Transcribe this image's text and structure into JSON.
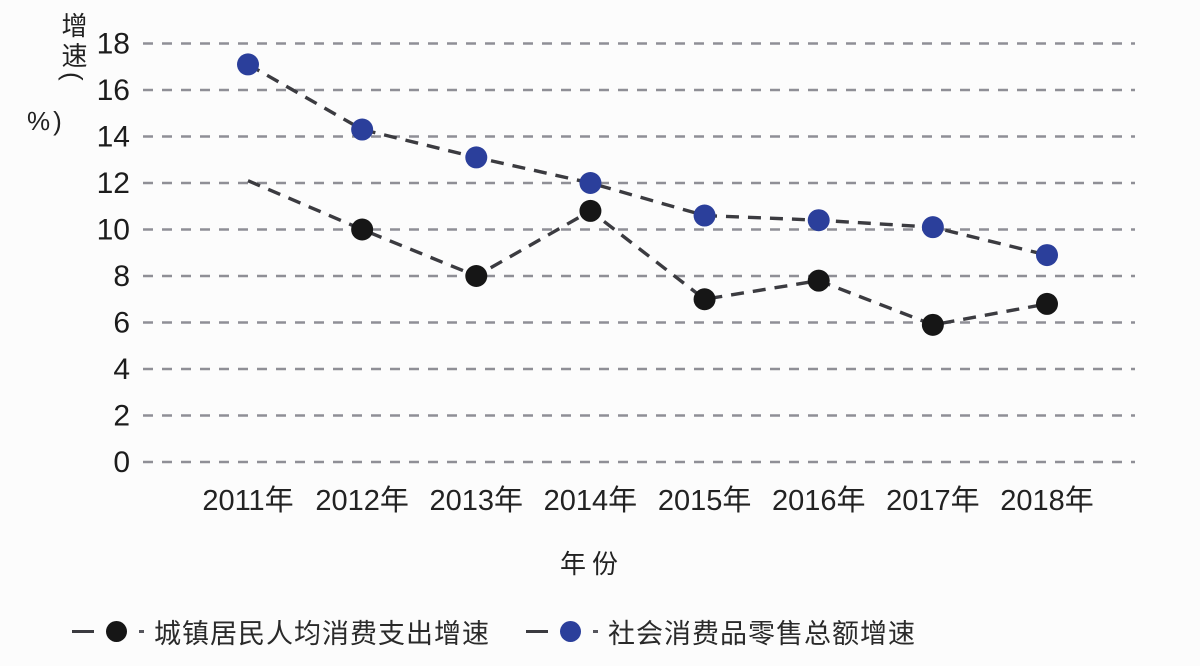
{
  "chart_data": {
    "type": "line",
    "title": "",
    "x": [
      "2011年",
      "2012年",
      "2013年",
      "2014年",
      "2015年",
      "2016年",
      "2017年",
      "2018年"
    ],
    "xlabel": "年份",
    "ylabel": "增速（%）",
    "ylabel_parts": {
      "vertical": "增速(",
      "suffix": "%)"
    },
    "yticks": [
      0,
      2,
      4,
      6,
      8,
      10,
      12,
      14,
      16,
      18
    ],
    "ylim": [
      0,
      18
    ],
    "grid": "horizontal dashed",
    "legend_position": "bottom",
    "colors": {
      "background": "#fcfcfc",
      "gridline": "#8f8f96",
      "line": "#3b3b40",
      "black_marker": "#161616",
      "blue_marker": "#2b3f9b",
      "tick_text": "#1c1c1c"
    },
    "series": [
      {
        "name": "城镇居民人均消费支出增速",
        "marker_color": "#161616",
        "line_style": "dashed",
        "values": [
          12.1,
          10.0,
          8.0,
          10.8,
          7.0,
          7.8,
          5.9,
          6.8
        ],
        "markers": [
          false,
          true,
          true,
          true,
          true,
          true,
          true,
          true
        ]
      },
      {
        "name": "社会消费品零售总额增速",
        "marker_color": "#2b3f9b",
        "line_style": "dashed",
        "values": [
          17.1,
          14.3,
          13.1,
          12.0,
          10.6,
          10.4,
          10.1,
          8.9
        ],
        "markers": [
          true,
          true,
          true,
          true,
          true,
          true,
          true,
          true
        ]
      }
    ]
  }
}
